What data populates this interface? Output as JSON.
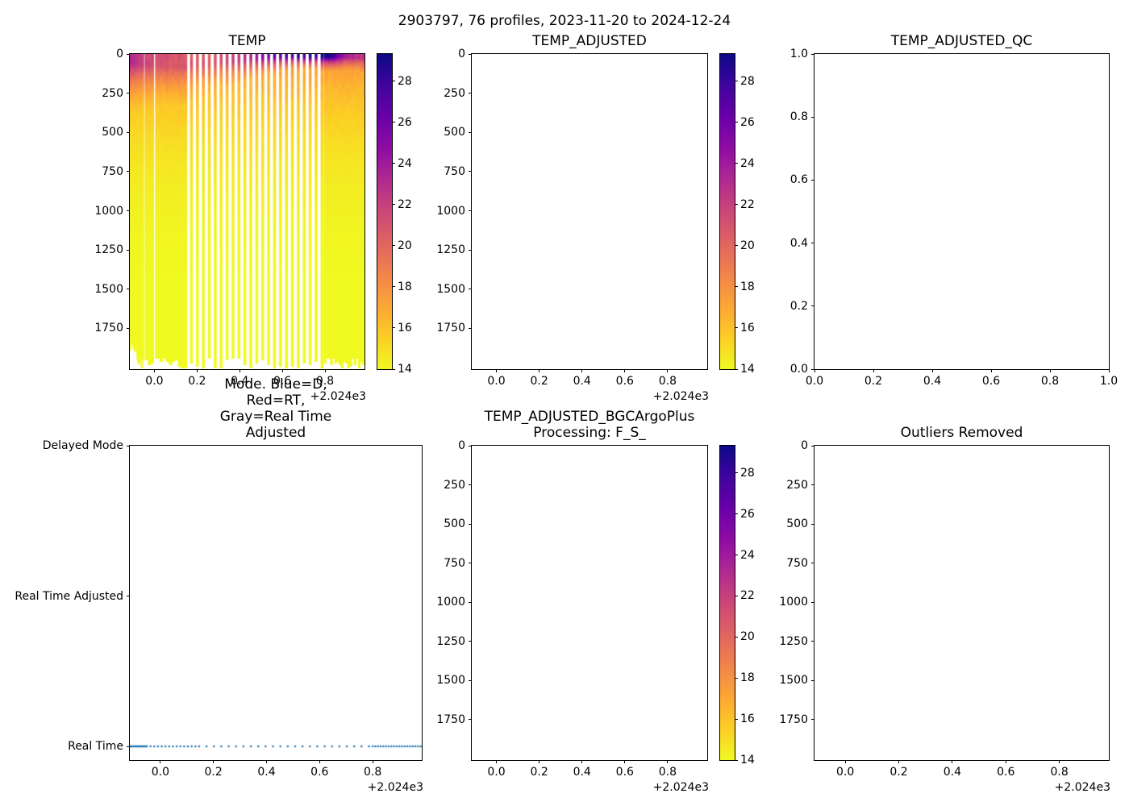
{
  "figure": {
    "title": "2903797, 76 profiles, 2023-11-20 to 2024-12-24",
    "float_id": "2903797",
    "n_profiles": 76,
    "date_start": "2023-11-20",
    "date_end": "2024-12-24"
  },
  "colors": {
    "marker_blue": "#1f77b4",
    "spine": "#000000",
    "background": "#ffffff",
    "plasma_stops": [
      [
        0.0,
        "#0d0887"
      ],
      [
        0.1,
        "#41049d"
      ],
      [
        0.2,
        "#6a00a8"
      ],
      [
        0.3,
        "#8f0da4"
      ],
      [
        0.4,
        "#b12a90"
      ],
      [
        0.5,
        "#cc4778"
      ],
      [
        0.6,
        "#e16462"
      ],
      [
        0.7,
        "#f2844b"
      ],
      [
        0.8,
        "#fca636"
      ],
      [
        0.9,
        "#fcce25"
      ],
      [
        1.0,
        "#f0f921"
      ]
    ]
  },
  "profiles": {
    "count": 76,
    "x_offset_base": "+2.024e3",
    "segments": [
      {
        "start": -0.113,
        "end": -0.051,
        "count": 20,
        "style": "continuous"
      },
      {
        "start": -0.037,
        "end": 0.146,
        "count": 14,
        "style": "continuous"
      },
      {
        "start": 0.174,
        "end": 0.786,
        "count": 23,
        "style": "gapped"
      },
      {
        "start": 0.8,
        "end": 0.981,
        "count": 19,
        "style": "continuous"
      }
    ],
    "gapped_column_width": 0.0135
  },
  "temp_field": {
    "deep_temp": 13.85,
    "surface_temp_points": [
      [
        -0.115,
        23.6
      ],
      [
        -0.08,
        22.6
      ],
      [
        -0.04,
        21.8
      ],
      [
        0.0,
        21.2
      ],
      [
        0.08,
        20.8
      ],
      [
        0.2,
        20.4
      ],
      [
        0.3,
        20.9
      ],
      [
        0.4,
        22.2
      ],
      [
        0.47,
        23.8
      ],
      [
        0.53,
        25.3
      ],
      [
        0.6,
        27.2
      ],
      [
        0.66,
        28.4
      ],
      [
        0.72,
        29.0
      ],
      [
        0.786,
        29.2
      ],
      [
        0.81,
        29.2
      ],
      [
        0.83,
        28.6
      ],
      [
        0.87,
        25.8
      ],
      [
        0.9,
        24.0
      ],
      [
        0.93,
        23.2
      ],
      [
        0.985,
        22.3
      ]
    ],
    "mixed_layer_points": [
      [
        -0.115,
        55
      ],
      [
        -0.05,
        65
      ],
      [
        0.05,
        70
      ],
      [
        0.15,
        75
      ],
      [
        0.25,
        60
      ],
      [
        0.35,
        45
      ],
      [
        0.45,
        28
      ],
      [
        0.55,
        16
      ],
      [
        0.65,
        10
      ],
      [
        0.8,
        12
      ],
      [
        0.9,
        16
      ],
      [
        0.985,
        24
      ]
    ],
    "decay_points": [
      [
        -0.115,
        190
      ],
      [
        0.0,
        200
      ],
      [
        0.15,
        200
      ],
      [
        0.3,
        160
      ],
      [
        0.45,
        110
      ],
      [
        0.55,
        80
      ],
      [
        0.65,
        55
      ],
      [
        0.8,
        60
      ],
      [
        0.9,
        75
      ],
      [
        0.985,
        95
      ]
    ],
    "base_warm": {
      "amp": 4.2,
      "scale": 430
    },
    "max_depth_base": 1935,
    "max_depth_var": 70,
    "shallow_overrides": [
      1885,
      1860,
      1836,
      1850,
      1874,
      1856,
      1896,
      1882,
      1864,
      1904
    ],
    "missing_line_x": 0.001,
    "summer_alt": [
      0.35,
      -0.75
    ]
  },
  "chart_data": [
    {
      "id": "temp",
      "type": "heatmap",
      "empty": false,
      "title": "TEMP",
      "xlim": [
        -0.115,
        0.985
      ],
      "xtick_vals": [
        0,
        0.2,
        0.4,
        0.6,
        0.8
      ],
      "xtick_labels": [
        "0.0",
        "0.2",
        "0.4",
        "0.6",
        "0.8"
      ],
      "x_offset_label": "+2.024e3",
      "ylim": [
        0,
        2010
      ],
      "y_dir": "down",
      "ytick_vals": [
        0,
        250,
        500,
        750,
        1000,
        1250,
        1500,
        1750
      ],
      "ytick_labels": [
        "0",
        "250",
        "500",
        "750",
        "1000",
        "1250",
        "1500",
        "1750"
      ],
      "colorbar": {
        "vmin": 14,
        "vmax": 29.33,
        "cmap": "plasma_r",
        "tick_vals": [
          28,
          26,
          24,
          22,
          20,
          18,
          16,
          14
        ],
        "tick_labels": [
          "28",
          "26",
          "24",
          "22",
          "20",
          "18",
          "16",
          "14"
        ]
      }
    },
    {
      "id": "temp_adjusted",
      "type": "heatmap",
      "empty": true,
      "title": "TEMP_ADJUSTED",
      "xlim": [
        -0.115,
        0.985
      ],
      "xtick_vals": [
        0,
        0.2,
        0.4,
        0.6,
        0.8
      ],
      "xtick_labels": [
        "0.0",
        "0.2",
        "0.4",
        "0.6",
        "0.8"
      ],
      "x_offset_label": "+2.024e3",
      "ylim": [
        0,
        2010
      ],
      "y_dir": "down",
      "ytick_vals": [
        0,
        250,
        500,
        750,
        1000,
        1250,
        1500,
        1750
      ],
      "ytick_labels": [
        "0",
        "250",
        "500",
        "750",
        "1000",
        "1250",
        "1500",
        "1750"
      ],
      "colorbar": {
        "vmin": 14,
        "vmax": 29.33,
        "cmap": "plasma_r",
        "tick_vals": [
          28,
          26,
          24,
          22,
          20,
          18,
          16,
          14
        ],
        "tick_labels": [
          "28",
          "26",
          "24",
          "22",
          "20",
          "18",
          "16",
          "14"
        ]
      }
    },
    {
      "id": "qc",
      "type": "empty",
      "empty": true,
      "title": "TEMP_ADJUSTED_QC",
      "xlim": [
        0,
        1
      ],
      "xtick_vals": [
        0,
        0.2,
        0.4,
        0.6,
        0.8,
        1
      ],
      "xtick_labels": [
        "0.0",
        "0.2",
        "0.4",
        "0.6",
        "0.8",
        "1.0"
      ],
      "ylim": [
        0,
        1
      ],
      "y_dir": "up",
      "ytick_vals": [
        1,
        0.8,
        0.6,
        0.4,
        0.2,
        0
      ],
      "ytick_labels": [
        "1.0",
        "0.8",
        "0.6",
        "0.4",
        "0.2",
        "0.0"
      ]
    },
    {
      "id": "mode",
      "type": "scatter",
      "empty": false,
      "title_lines": [
        "Mode. Blue=D, Red=RT,",
        "Gray=Real Time Adjusted"
      ],
      "xlim": [
        -0.115,
        0.985
      ],
      "xtick_vals": [
        0,
        0.2,
        0.4,
        0.6,
        0.8
      ],
      "xtick_labels": [
        "0.0",
        "0.2",
        "0.4",
        "0.6",
        "0.8"
      ],
      "x_offset_label": "+2.024e3",
      "ylim": [
        -0.091,
        2
      ],
      "y_dir": "up",
      "ytick_vals": [
        2,
        1,
        0
      ],
      "ytick_labels": [
        "Delayed Mode",
        "Real Time Adjusted",
        "Real Time"
      ],
      "marker": {
        "color": "#1f77b4",
        "radius": 1.3,
        "y_value": 0,
        "meaning": "all 76 profiles plotted at Real Time"
      }
    },
    {
      "id": "bgc",
      "type": "heatmap",
      "empty": true,
      "title_lines": [
        "TEMP_ADJUSTED_BGCArgoPlus",
        "Processing: F_S_"
      ],
      "xlim": [
        -0.115,
        0.985
      ],
      "xtick_vals": [
        0,
        0.2,
        0.4,
        0.6,
        0.8
      ],
      "xtick_labels": [
        "0.0",
        "0.2",
        "0.4",
        "0.6",
        "0.8"
      ],
      "x_offset_label": "+2.024e3",
      "ylim": [
        0,
        2010
      ],
      "y_dir": "down",
      "ytick_vals": [
        0,
        250,
        500,
        750,
        1000,
        1250,
        1500,
        1750
      ],
      "ytick_labels": [
        "0",
        "250",
        "500",
        "750",
        "1000",
        "1250",
        "1500",
        "1750"
      ],
      "colorbar": {
        "vmin": 14,
        "vmax": 29.33,
        "cmap": "plasma_r",
        "tick_vals": [
          28,
          26,
          24,
          22,
          20,
          18,
          16,
          14
        ],
        "tick_labels": [
          "28",
          "26",
          "24",
          "22",
          "20",
          "18",
          "16",
          "14"
        ]
      }
    },
    {
      "id": "outliers",
      "type": "empty",
      "empty": true,
      "title": "Outliers Removed",
      "xlim": [
        -0.115,
        0.985
      ],
      "xtick_vals": [
        0,
        0.2,
        0.4,
        0.6,
        0.8
      ],
      "xtick_labels": [
        "0.0",
        "0.2",
        "0.4",
        "0.6",
        "0.8"
      ],
      "x_offset_label": "+2.024e3",
      "ylim": [
        0,
        2010
      ],
      "y_dir": "down",
      "ytick_vals": [
        0,
        250,
        500,
        750,
        1000,
        1250,
        1500,
        1750
      ],
      "ytick_labels": [
        "0",
        "250",
        "500",
        "750",
        "1000",
        "1250",
        "1500",
        "1750"
      ]
    }
  ]
}
